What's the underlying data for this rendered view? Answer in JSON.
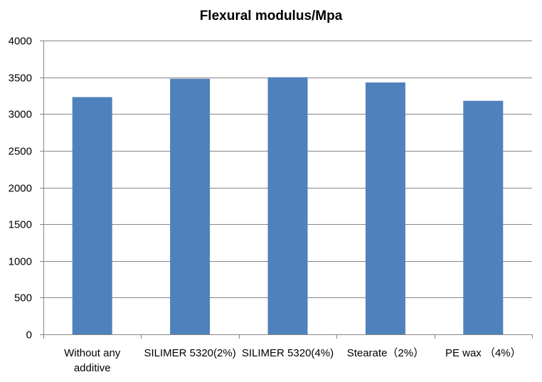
{
  "chart_data": {
    "type": "bar",
    "title": "Flexural modulus/Mpa",
    "categories": [
      [
        "Without any",
        "additive"
      ],
      [
        "SILIMER 5320(2%)"
      ],
      [
        "SILIMER 5320(4%)"
      ],
      [
        "Stearate（2%）"
      ],
      [
        "PE wax （4%）"
      ]
    ],
    "values": [
      3230,
      3480,
      3500,
      3430,
      3180
    ],
    "ylim": [
      0,
      4000
    ],
    "yticks": [
      0,
      500,
      1000,
      1500,
      2000,
      2500,
      3000,
      3500,
      4000
    ],
    "grid": true,
    "legend": "none",
    "colors": {
      "bar": "#4F81BD",
      "grid": "#868686",
      "axis": "#868686",
      "text": "#000000"
    }
  }
}
